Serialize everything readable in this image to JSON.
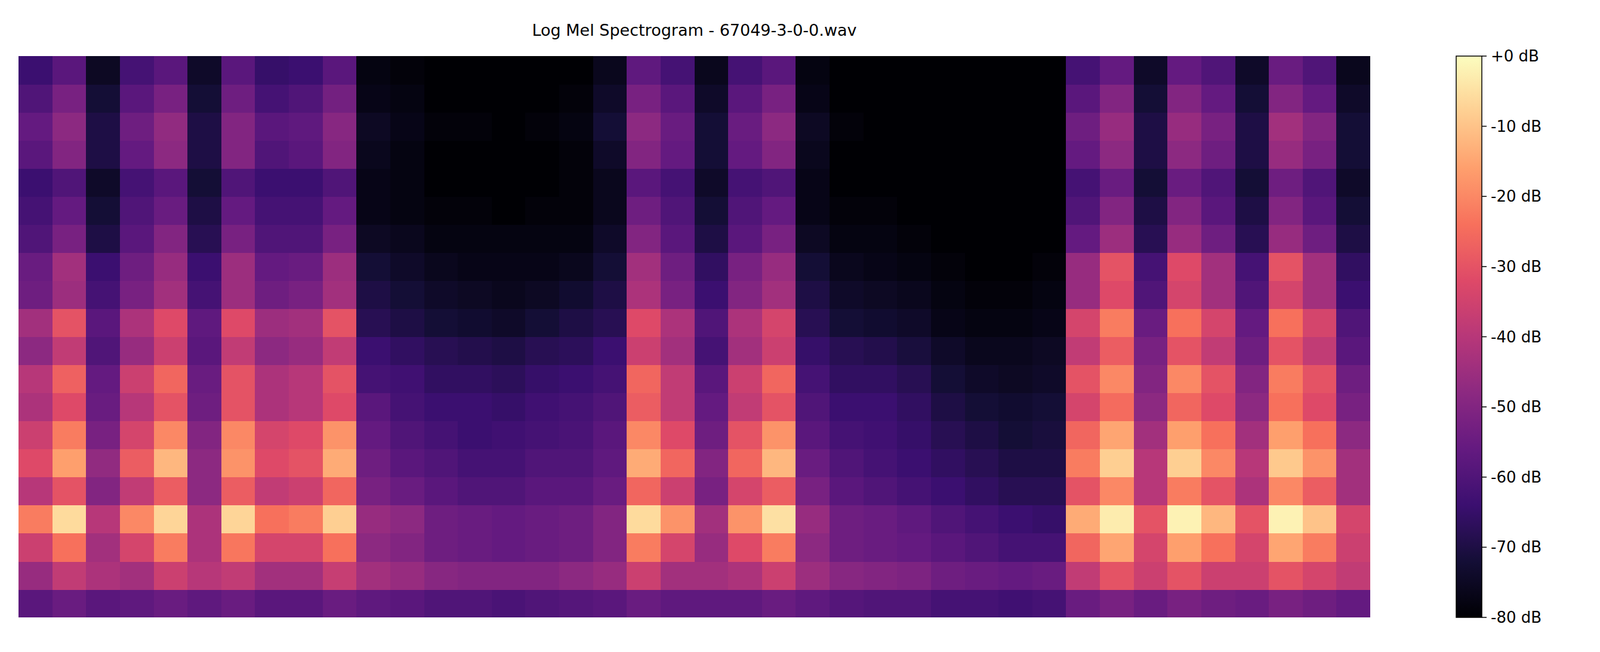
{
  "chart_data": {
    "type": "heatmap",
    "title": "Log Mel Spectrogram - 67049-3-0-0.wav",
    "tick_labels": false,
    "cells": [
      [
        -58,
        -46,
        -36,
        -22,
        -40,
        -32,
        -36,
        -42,
        -40,
        -48,
        -44,
        -54,
        -55,
        -60,
        -62,
        -64,
        -58,
        -56,
        -60,
        -64
      ],
      [
        -55,
        -38,
        -24,
        -6,
        -30,
        -16,
        -22,
        -32,
        -27,
        -38,
        -30,
        -45,
        -44,
        -52,
        -56,
        -60,
        -50,
        -48,
        -52,
        -58
      ],
      [
        -58,
        -42,
        -44,
        -40,
        -50,
        -47,
        -52,
        -55,
        -56,
        -60,
        -58,
        -62,
        -64,
        -70,
        -72,
        -74,
        -70,
        -70,
        -72,
        -75
      ],
      [
        -57,
        -44,
        -34,
        -20,
        -38,
        -28,
        -34,
        -40,
        -36,
        -46,
        -42,
        -52,
        -54,
        -58,
        -60,
        -62,
        -56,
        -54,
        -58,
        -62
      ],
      [
        -55,
        -36,
        -22,
        -7,
        -28,
        -12,
        -20,
        -30,
        -26,
        -36,
        -32,
        -44,
        -46,
        -50,
        -55,
        -58,
        -48,
        -47,
        -52,
        -58
      ],
      [
        -57,
        -40,
        -42,
        -42,
        -48,
        -48,
        -50,
        -54,
        -55,
        -58,
        -57,
        -62,
        -64,
        -68,
        -70,
        -72,
        -70,
        -70,
        -72,
        -74
      ],
      [
        -55,
        -38,
        -23,
        -7,
        -28,
        -18,
        -20,
        -30,
        -30,
        -38,
        -32,
        -45,
        -45,
        -52,
        -56,
        -60,
        -50,
        -50,
        -54,
        -58
      ],
      [
        -58,
        -44,
        -34,
        -24,
        -38,
        -32,
        -34,
        -42,
        -42,
        -48,
        -45,
        -54,
        -56,
        -60,
        -62,
        -64,
        -60,
        -58,
        -62,
        -65
      ],
      [
        -58,
        -44,
        -34,
        -22,
        -36,
        -30,
        -32,
        -40,
        -40,
        -46,
        -44,
        -52,
        -55,
        -60,
        -62,
        -64,
        -58,
        -57,
        -60,
        -64
      ],
      [
        -55,
        -37,
        -24,
        -8,
        -26,
        -14,
        -18,
        -32,
        -30,
        -38,
        -30,
        -44,
        -45,
        -52,
        -56,
        -60,
        -50,
        -49,
        -53,
        -58
      ],
      [
        -57,
        -44,
        -48,
        -46,
        -52,
        -54,
        -56,
        -58,
        -62,
        -64,
        -68,
        -70,
        -72,
        -75,
        -77,
        -77,
        -76,
        -75,
        -77,
        -78
      ],
      [
        -58,
        -46,
        -50,
        -48,
        -55,
        -58,
        -60,
        -62,
        -63,
        -66,
        -70,
        -72,
        -74,
        -76,
        -78,
        -78,
        -78,
        -77,
        -78,
        -79
      ],
      [
        -60,
        -49,
        -54,
        -54,
        -58,
        -60,
        -62,
        -64,
        -66,
        -68,
        -72,
        -74,
        -76,
        -78,
        -79,
        -80,
        -80,
        -79,
        -80,
        -80
      ],
      [
        -60,
        -50,
        -55,
        -55,
        -60,
        -62,
        -64,
        -64,
        -66,
        -69,
        -73,
        -75,
        -77,
        -78,
        -79,
        -80,
        -80,
        -79,
        -80,
        -80
      ],
      [
        -61,
        -50,
        -56,
        -56,
        -60,
        -62,
        -63,
        -65,
        -67,
        -70,
        -74,
        -76,
        -77,
        -78,
        -80,
        -80,
        -80,
        -80,
        -80,
        -80
      ],
      [
        -60,
        -50,
        -55,
        -55,
        -58,
        -60,
        -62,
        -63,
        -65,
        -68,
        -72,
        -75,
        -77,
        -78,
        -79,
        -80,
        -80,
        -79,
        -80,
        -80
      ],
      [
        -59,
        -48,
        -54,
        -54,
        -58,
        -60,
        -61,
        -62,
        -64,
        -67,
        -70,
        -73,
        -76,
        -78,
        -79,
        -79,
        -79,
        -78,
        -79,
        -80
      ],
      [
        -58,
        -46,
        -50,
        -50,
        -55,
        -57,
        -58,
        -60,
        -62,
        -64,
        -68,
        -70,
        -72,
        -74,
        -76,
        -76,
        -74,
        -72,
        -74,
        -76
      ],
      [
        -55,
        -36,
        -22,
        -6,
        -26,
        -14,
        -20,
        -28,
        -26,
        -36,
        -32,
        -42,
        -44,
        -50,
        -54,
        -58,
        -50,
        -48,
        -52,
        -57
      ],
      [
        -57,
        -44,
        -34,
        -18,
        -36,
        -26,
        -32,
        -38,
        -38,
        -44,
        -42,
        -52,
        -54,
        -58,
        -60,
        -62,
        -56,
        -55,
        -58,
        -62
      ],
      [
        -57,
        -44,
        -46,
        -44,
        -52,
        -50,
        -54,
        -56,
        -58,
        -62,
        -60,
        -64,
        -66,
        -70,
        -72,
        -74,
        -72,
        -72,
        -74,
        -76
      ],
      [
        -57,
        -42,
        -32,
        -18,
        -34,
        -26,
        -30,
        -38,
        -36,
        -44,
        -42,
        -50,
        -52,
        -58,
        -60,
        -62,
        -56,
        -55,
        -58,
        -62
      ],
      [
        -55,
        -36,
        -22,
        -5,
        -28,
        -12,
        -18,
        -30,
        -26,
        -36,
        -34,
        -44,
        -46,
        -52,
        -56,
        -60,
        -50,
        -48,
        -52,
        -58
      ],
      [
        -57,
        -45,
        -48,
        -46,
        -52,
        -55,
        -58,
        -60,
        -62,
        -65,
        -68,
        -70,
        -72,
        -75,
        -77,
        -77,
        -76,
        -75,
        -77,
        -78
      ],
      [
        -59,
        -49,
        -54,
        -54,
        -58,
        -60,
        -62,
        -64,
        -66,
        -68,
        -72,
        -74,
        -76,
        -78,
        -79,
        -80,
        -80,
        -79,
        -80,
        -80
      ],
      [
        -60,
        -50,
        -55,
        -55,
        -60,
        -62,
        -63,
        -64,
        -66,
        -69,
        -73,
        -75,
        -77,
        -78,
        -79,
        -80,
        -80,
        -80,
        -80,
        -80
      ],
      [
        -60,
        -51,
        -56,
        -57,
        -62,
        -64,
        -65,
        -66,
        -68,
        -71,
        -74,
        -76,
        -78,
        -79,
        -80,
        -80,
        -80,
        -80,
        -80,
        -80
      ],
      [
        -62,
        -54,
        -58,
        -60,
        -64,
        -66,
        -68,
        -70,
        -72,
        -74,
        -77,
        -78,
        -79,
        -80,
        -80,
        -80,
        -80,
        -80,
        -80,
        -80
      ],
      [
        -62,
        -55,
        -60,
        -62,
        -66,
        -68,
        -70,
        -72,
        -74,
        -76,
        -78,
        -79,
        -80,
        -80,
        -80,
        -80,
        -80,
        -80,
        -80,
        -80
      ],
      [
        -63,
        -56,
        -62,
        -64,
        -68,
        -70,
        -72,
        -73,
        -75,
        -76,
        -78,
        -79,
        -80,
        -80,
        -80,
        -80,
        -80,
        -80,
        -80,
        -80
      ],
      [
        -62,
        -55,
        -62,
        -65,
        -68,
        -70,
        -71,
        -72,
        -74,
        -75,
        -77,
        -78,
        -79,
        -80,
        -80,
        -80,
        -80,
        -80,
        -80,
        -80
      ],
      [
        -55,
        -38,
        -26,
        -14,
        -30,
        -22,
        -26,
        -34,
        -30,
        -38,
        -34,
        -46,
        -46,
        -56,
        -60,
        -62,
        -56,
        -54,
        -58,
        -62
      ],
      [
        -52,
        -30,
        -15,
        -3,
        -20,
        -8,
        -15,
        -25,
        -20,
        -28,
        -22,
        -32,
        -30,
        -45,
        -50,
        -55,
        -48,
        -46,
        -50,
        -56
      ],
      [
        -55,
        -36,
        -34,
        -30,
        -40,
        -40,
        -44,
        -48,
        -50,
        -52,
        -55,
        -60,
        -62,
        -68,
        -70,
        -72,
        -70,
        -70,
        -72,
        -74
      ],
      [
        -52,
        -30,
        -16,
        -2,
        -22,
        -8,
        -16,
        -26,
        -20,
        -30,
        -24,
        -34,
        -32,
        -46,
        -50,
        -55,
        -48,
        -46,
        -50,
        -56
      ],
      [
        -54,
        -36,
        -24,
        -12,
        -30,
        -20,
        -24,
        -32,
        -30,
        -38,
        -34,
        -44,
        -44,
        -54,
        -58,
        -60,
        -54,
        -52,
        -56,
        -60
      ],
      [
        -55,
        -36,
        -34,
        -30,
        -42,
        -40,
        -44,
        -48,
        -50,
        -54,
        -56,
        -60,
        -62,
        -68,
        -70,
        -72,
        -70,
        -70,
        -72,
        -74
      ],
      [
        -52,
        -30,
        -15,
        -2,
        -20,
        -9,
        -16,
        -24,
        -22,
        -30,
        -24,
        -34,
        -30,
        -46,
        -50,
        -54,
        -46,
        -44,
        -50,
        -55
      ],
      [
        -54,
        -34,
        -22,
        -10,
        -28,
        -18,
        -24,
        -32,
        -30,
        -38,
        -34,
        -44,
        -44,
        -54,
        -58,
        -60,
        -52,
        -50,
        -56,
        -60
      ],
      [
        -56,
        -38,
        -36,
        -34,
        -44,
        -44,
        -48,
        -52,
        -54,
        -58,
        -60,
        -64,
        -66,
        -70,
        -72,
        -74,
        -72,
        -72,
        -74,
        -76
      ]
    ],
    "colorbar": {
      "range": [
        -80,
        0
      ],
      "ticks": [
        {
          "value": 0,
          "label": "+0 dB"
        },
        {
          "value": -10,
          "label": "-10 dB"
        },
        {
          "value": -20,
          "label": "-20 dB"
        },
        {
          "value": -30,
          "label": "-30 dB"
        },
        {
          "value": -40,
          "label": "-40 dB"
        },
        {
          "value": -50,
          "label": "-50 dB"
        },
        {
          "value": -60,
          "label": "-60 dB"
        },
        {
          "value": -70,
          "label": "-70 dB"
        },
        {
          "value": -80,
          "label": "-80 dB"
        }
      ]
    }
  }
}
